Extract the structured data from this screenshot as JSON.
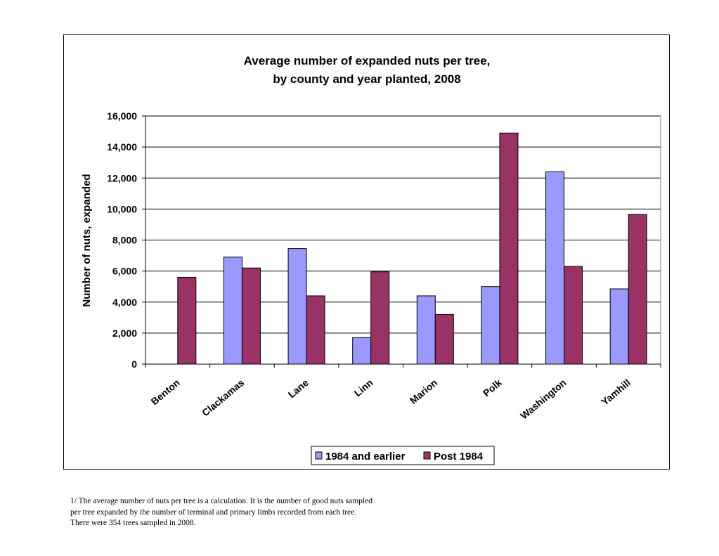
{
  "chart_data": {
    "type": "bar",
    "title_lines": [
      "Average number of expanded nuts per tree,",
      "by county and year planted, 2008"
    ],
    "ylabel": "Number of nuts, expanded",
    "xlabel": "",
    "categories": [
      "Benton",
      "Clackamas",
      "Lane",
      "Linn",
      "Marion",
      "Polk",
      "Washington",
      "Yamhill"
    ],
    "series": [
      {
        "name": "1984 and earlier",
        "color": "#9999ff",
        "values": [
          null,
          6900,
          7450,
          1700,
          4400,
          5000,
          12400,
          4850
        ]
      },
      {
        "name": "Post 1984",
        "color": "#993366",
        "values": [
          5600,
          6200,
          4400,
          5950,
          3200,
          14900,
          6300,
          9650
        ]
      }
    ],
    "ylim": [
      0,
      16000
    ],
    "yticks": [
      0,
      2000,
      4000,
      6000,
      8000,
      10000,
      12000,
      14000,
      16000
    ],
    "ytick_labels": [
      "0",
      "2,000",
      "4,000",
      "6,000",
      "8,000",
      "10,000",
      "12,000",
      "14,000",
      "16,000"
    ],
    "grid": true,
    "legend": "bottom"
  },
  "footnote": {
    "lines": [
      "1/ The average number of nuts per tree is a calculation. It is the number of good nuts sampled",
      "per tree expanded by the number of terminal and primary limbs recorded from each tree.",
      "There were 354 trees sampled in 2008."
    ]
  }
}
